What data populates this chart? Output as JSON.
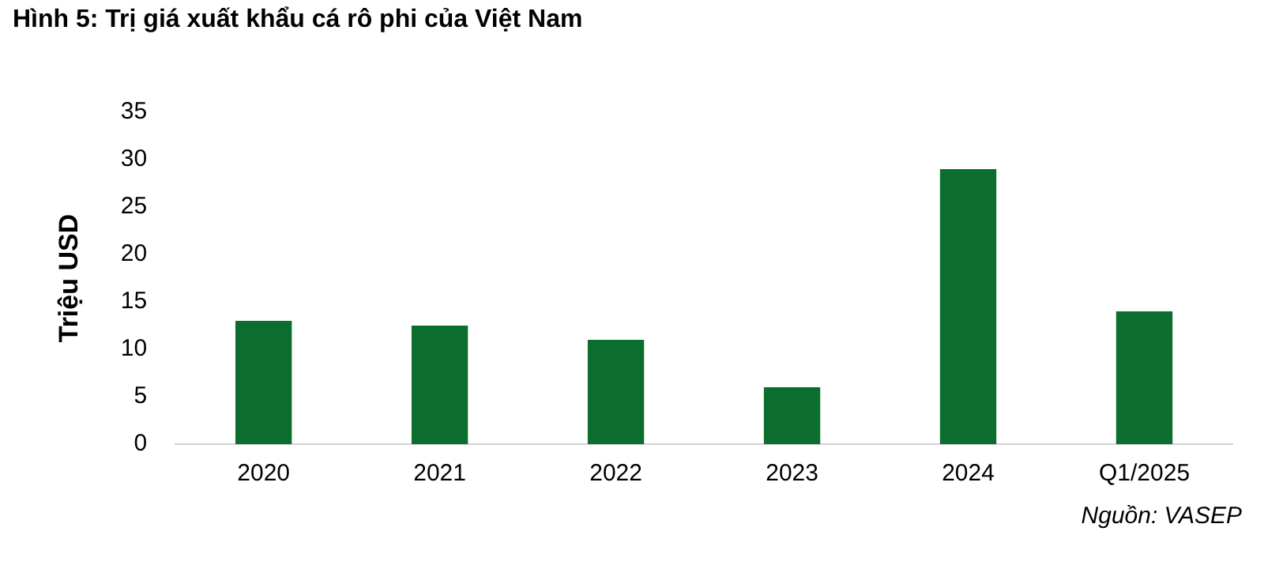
{
  "chart_data": {
    "type": "bar",
    "title": "Hình 5: Trị giá xuất khẩu cá rô phi của Việt Nam",
    "ylabel": "Triệu USD",
    "categories": [
      "2020",
      "2021",
      "2022",
      "2023",
      "2024",
      "Q1/2025"
    ],
    "values": [
      13,
      12.5,
      11,
      6,
      29,
      14
    ],
    "color": "#0b6e2e",
    "ylim": [
      0,
      35
    ],
    "yticks": [
      0,
      5,
      10,
      15,
      20,
      25,
      30,
      35
    ],
    "grid": false,
    "annotations": [
      "Nguồn: VASEP"
    ]
  }
}
